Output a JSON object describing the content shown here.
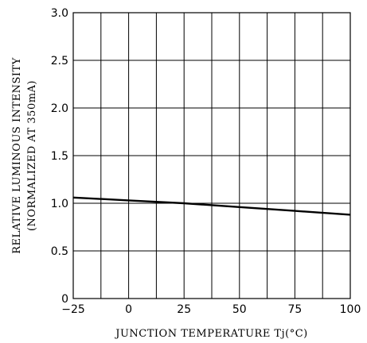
{
  "chart_data": {
    "type": "line",
    "title": "",
    "xlabel": "JUNCTION TEMPERATURE Tj(°C)",
    "ylabel_line1": "RELATIVE LUMINOUS INTENSITY",
    "ylabel_line2": "(NORMALIZED AT 350mA)",
    "xlim": [
      -25,
      100
    ],
    "ylim": [
      0,
      3.0
    ],
    "x_ticks": [
      -25,
      0,
      25,
      50,
      75,
      100
    ],
    "x_tick_labels": [
      "−25",
      "0",
      "25",
      "50",
      "75",
      "100"
    ],
    "y_ticks": [
      0,
      0.5,
      1.0,
      1.5,
      2.0,
      2.5,
      3.0
    ],
    "y_tick_labels": [
      "0",
      "0.5",
      "1.0",
      "1.5",
      "2.0",
      "2.5",
      "3.0"
    ],
    "grid": true,
    "series": [
      {
        "x": [
          -25,
          0,
          25,
          50,
          75,
          100
        ],
        "y": [
          1.06,
          1.03,
          1.0,
          0.96,
          0.92,
          0.88
        ]
      }
    ]
  }
}
